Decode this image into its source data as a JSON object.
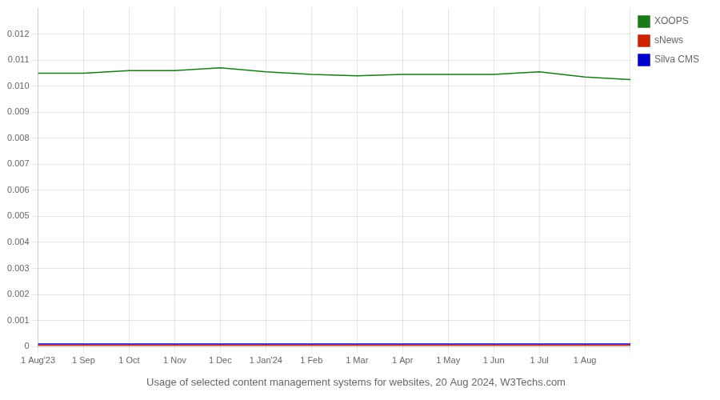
{
  "chart_data": {
    "type": "line",
    "title": "Usage of selected content management systems for websites, 20 Aug 2024, W3Techs.com",
    "categories": [
      "1 Aug'23",
      "1 Sep",
      "1 Oct",
      "1 Nov",
      "1 Dec",
      "1 Jan'24",
      "1 Feb",
      "1 Mar",
      "1 Apr",
      "1 May",
      "1 Jun",
      "1 Jul",
      "1 Aug",
      null
    ],
    "series": [
      {
        "name": "XOOPS",
        "color": "#1a7a1a",
        "values": [
          0.0105,
          0.0105,
          0.0106,
          0.0106,
          0.0107,
          0.01055,
          0.01045,
          0.0104,
          0.01045,
          0.01045,
          0.01045,
          0.01055,
          0.01035,
          0.01025
        ]
      },
      {
        "name": "sNews",
        "color": "#cc2200",
        "values": [
          5e-05,
          5e-05,
          5e-05,
          5e-05,
          5e-05,
          5e-05,
          5e-05,
          5e-05,
          5e-05,
          5e-05,
          5e-05,
          5e-05,
          5e-05,
          5e-05
        ]
      },
      {
        "name": "Silva CMS",
        "color": "#0000cc",
        "values": [
          0.0001,
          0.0001,
          0.0001,
          0.0001,
          0.0001,
          0.0001,
          0.0001,
          0.0001,
          0.0001,
          0.0001,
          0.0001,
          0.0001,
          0.0001,
          0.0001
        ]
      }
    ],
    "ylim": [
      0,
      0.013
    ],
    "yticks": [
      0,
      0.001,
      0.002,
      0.003,
      0.004,
      0.005,
      0.006,
      0.007,
      0.008,
      0.009,
      {
        "value": 0.01,
        "label": "0.010"
      },
      0.011,
      0.012
    ],
    "grid": true,
    "legend": "right"
  }
}
